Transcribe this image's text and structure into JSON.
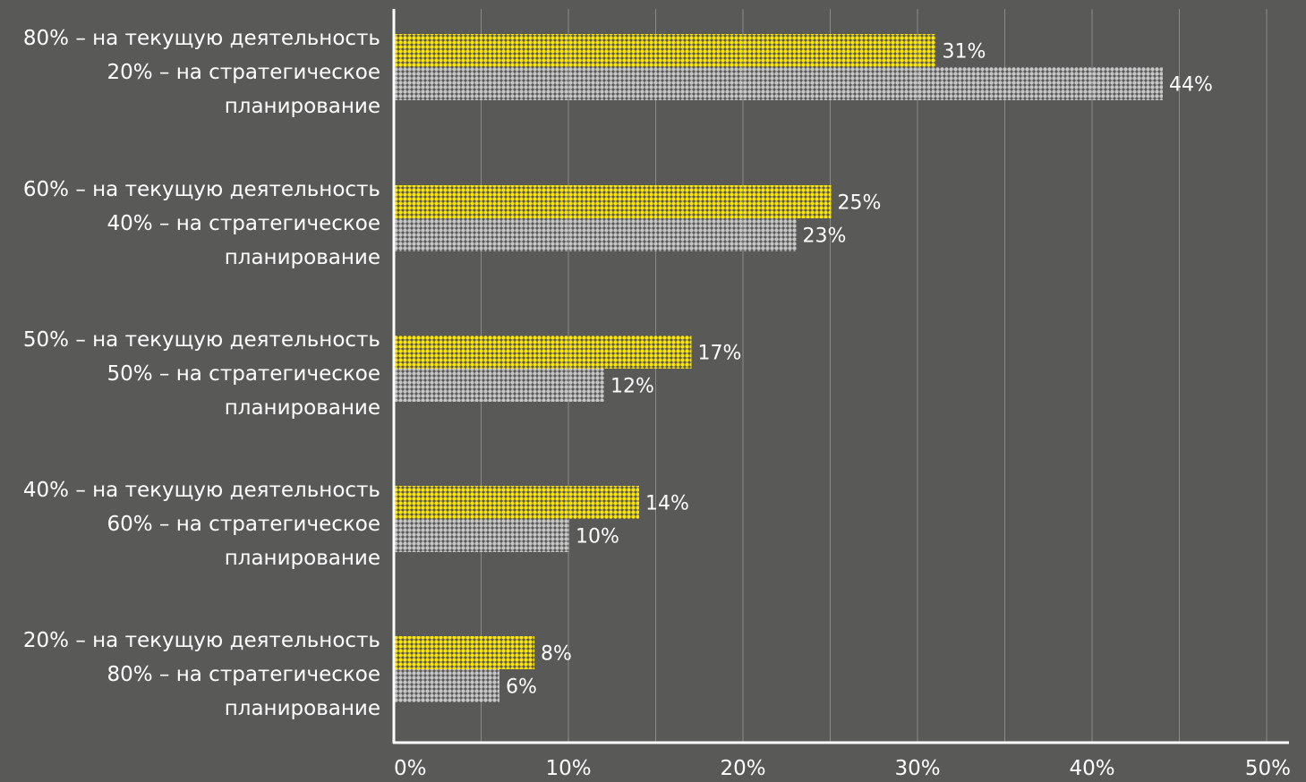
{
  "chart_data": {
    "type": "bar",
    "orientation": "horizontal",
    "categories": [
      [
        "80% – на текущую деятельность",
        "20% – на стратегическое",
        "планирование"
      ],
      [
        "60% – на текущую деятельность",
        "40% – на стратегическое",
        "планирование"
      ],
      [
        "50% – на текущую деятельность",
        "50% – на стратегическое",
        "планирование"
      ],
      [
        "40% – на текущую деятельность",
        "60% – на стратегическое",
        "планирование"
      ],
      [
        "20% – на текущую деятельность",
        "80% – на стратегическое",
        "планирование"
      ]
    ],
    "series": [
      {
        "values": [
          31,
          25,
          17,
          14,
          8
        ],
        "color": "#ffe600"
      },
      {
        "values": [
          44,
          23,
          12,
          10,
          6
        ],
        "color": "#c7c7c7"
      }
    ],
    "value_suffix": "%",
    "xlim": [
      0,
      50
    ],
    "x_ticks": [
      "0%",
      "10%",
      "20%",
      "30%",
      "40%",
      "50%"
    ],
    "grid": true,
    "legend": "none",
    "colors": {
      "background": "#595957",
      "text": "#ffffff",
      "grid": "#8a8a88",
      "axis": "#ffffff"
    }
  }
}
